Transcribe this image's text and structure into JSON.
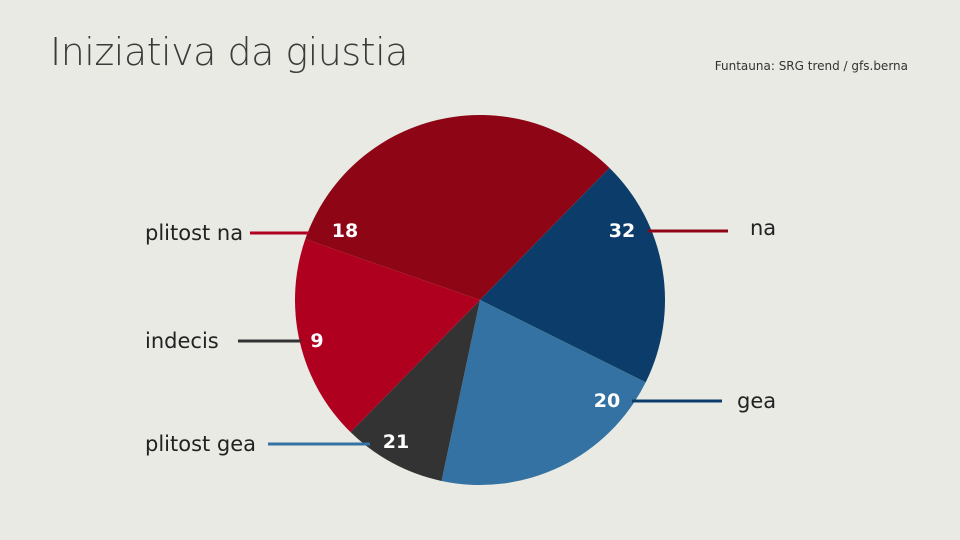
{
  "title": "Iniziativa da giustia",
  "source": "Funtauna: SRG trend / gfs.berna",
  "chart_data": {
    "type": "pie",
    "slices": [
      {
        "label": "na",
        "value": 32,
        "color": "#8e0615"
      },
      {
        "label": "gea",
        "value": 20,
        "color": "#0c3c69"
      },
      {
        "label": "plitost gea",
        "value": 21,
        "color": "#3472a3"
      },
      {
        "label": "indecis",
        "value": 9,
        "color": "#333333"
      },
      {
        "label": "plitost na",
        "value": 18,
        "color": "#af001f"
      }
    ]
  }
}
